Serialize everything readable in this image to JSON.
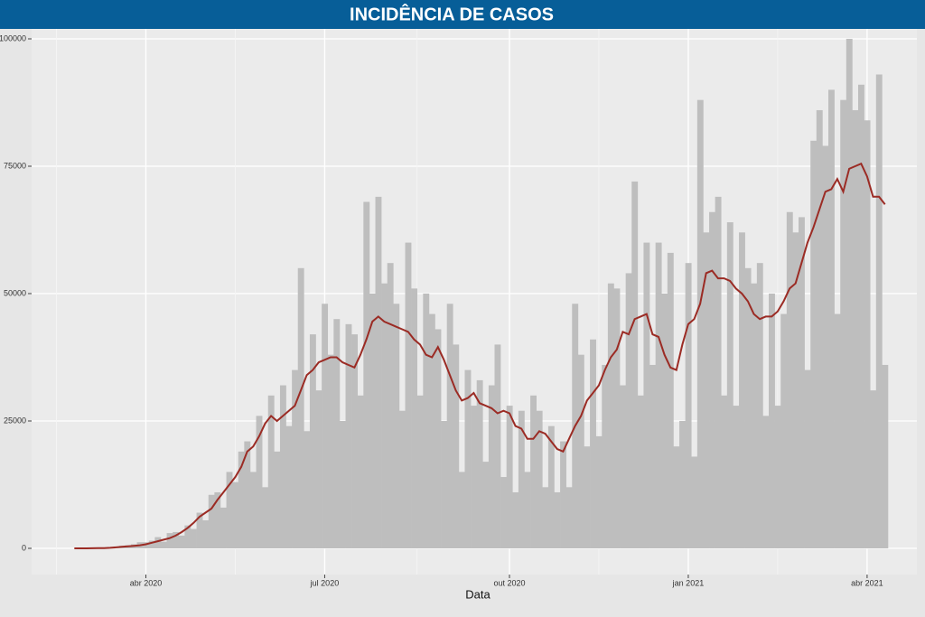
{
  "chart_data": {
    "type": "bar",
    "title": "INCIDÊNCIA DE CASOS",
    "x_label": "Data",
    "categories": [
      null,
      null,
      null,
      null,
      null,
      null,
      null,
      null,
      null,
      null,
      null,
      null,
      "abr 2020",
      null,
      null,
      null,
      null,
      null,
      null,
      null,
      null,
      null,
      null,
      null,
      null,
      null,
      null,
      null,
      null,
      null,
      null,
      null,
      null,
      null,
      null,
      null,
      null,
      null,
      null,
      null,
      null,
      null,
      "jul 2020",
      null,
      null,
      null,
      null,
      null,
      null,
      null,
      null,
      null,
      null,
      null,
      null,
      null,
      null,
      null,
      null,
      null,
      null,
      null,
      null,
      null,
      null,
      null,
      null,
      null,
      null,
      null,
      null,
      null,
      null,
      "out 2020",
      null,
      null,
      null,
      null,
      null,
      null,
      null,
      null,
      null,
      null,
      null,
      null,
      null,
      null,
      null,
      null,
      null,
      null,
      null,
      null,
      null,
      null,
      null,
      null,
      null,
      null,
      null,
      null,
      null,
      "jan 2021",
      null,
      null,
      null,
      null,
      null,
      null,
      null,
      null,
      null,
      null,
      null,
      null,
      null,
      null,
      null,
      null,
      null,
      null,
      null,
      null,
      null,
      null,
      null,
      null,
      null,
      null,
      null,
      null,
      null,
      "abr 2021",
      null,
      null,
      null
    ],
    "series": [
      {
        "color": "#bebebe",
        "values": [
          0,
          0,
          0,
          20,
          50,
          100,
          200,
          300,
          500,
          600,
          800,
          1200,
          1200,
          1500,
          2200,
          1300,
          3000,
          3200,
          2500,
          4500,
          3800,
          7000,
          5500,
          10500,
          11000,
          8000,
          15000,
          13000,
          19000,
          21000,
          15000,
          26000,
          12000,
          30000,
          19000,
          32000,
          24000,
          35000,
          55000,
          23000,
          42000,
          31000,
          48000,
          38000,
          45000,
          25000,
          44000,
          42000,
          30000,
          68000,
          50000,
          69000,
          52000,
          56000,
          48000,
          27000,
          60000,
          51000,
          30000,
          50000,
          46000,
          43000,
          25000,
          48000,
          40000,
          15000,
          35000,
          28000,
          33000,
          17000,
          32000,
          40000,
          14000,
          28000,
          11000,
          27000,
          15000,
          30000,
          27000,
          12000,
          24000,
          11000,
          21000,
          12000,
          48000,
          38000,
          20000,
          41000,
          22000,
          36000,
          52000,
          51000,
          32000,
          54000,
          72000,
          30000,
          60000,
          36000,
          60000,
          50000,
          58000,
          20000,
          25000,
          56000,
          18000,
          88000,
          62000,
          66000,
          69000,
          30000,
          64000,
          28000,
          62000,
          55000,
          52000,
          56000,
          26000,
          50000,
          28000,
          46000,
          66000,
          62000,
          65000,
          35000,
          80000,
          86000,
          79000,
          90000,
          46000,
          88000,
          100000,
          86000,
          91000,
          84000,
          31000,
          93000,
          36000
        ]
      },
      {
        "type": "line",
        "color": "#9b2b24",
        "values": [
          0,
          0,
          0,
          10,
          30,
          60,
          100,
          200,
          300,
          400,
          500,
          600,
          800,
          1100,
          1400,
          1700,
          2000,
          2500,
          3200,
          4000,
          5000,
          6200,
          7000,
          7800,
          9500,
          11000,
          12500,
          14000,
          16000,
          19000,
          20000,
          22000,
          24500,
          26000,
          25000,
          26000,
          27000,
          28000,
          31000,
          34000,
          35000,
          36500,
          37000,
          37500,
          37500,
          36500,
          36000,
          35500,
          38000,
          41000,
          44500,
          45500,
          44500,
          44000,
          43500,
          43000,
          42500,
          41000,
          40000,
          38000,
          37500,
          39500,
          37000,
          34000,
          31000,
          29000,
          29500,
          30500,
          28500,
          28000,
          27500,
          26500,
          27000,
          26500,
          24000,
          23500,
          21500,
          21500,
          23000,
          22500,
          21000,
          19500,
          19000,
          21500,
          24000,
          26000,
          29000,
          30500,
          32000,
          35000,
          37500,
          39000,
          42500,
          42000,
          45000,
          45500,
          46000,
          42000,
          41500,
          38000,
          35500,
          35000,
          40000,
          44000,
          45000,
          48000,
          54000,
          54500,
          53000,
          53000,
          52500,
          51000,
          50000,
          48500,
          46000,
          45000,
          45500,
          45500,
          46500,
          48500,
          51000,
          52000,
          56000,
          60000,
          63000,
          66500,
          70000,
          70500,
          72500,
          70000,
          74500,
          75000,
          75500,
          73000,
          69000,
          69000,
          67500
        ]
      }
    ],
    "ylim": [
      -5142,
      101950
    ],
    "yticks": [
      0,
      25000,
      50000,
      75000,
      100000
    ],
    "grid": true
  }
}
